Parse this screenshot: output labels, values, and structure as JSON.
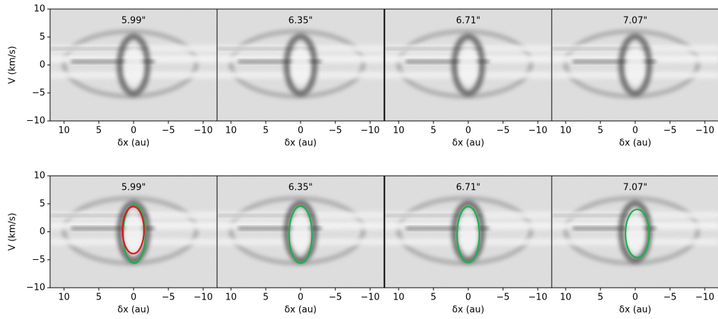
{
  "chart_data": [
    {
      "type": "image",
      "title": "5.99\"",
      "xlabel": "δx (au)",
      "ylabel": "V (km/s)",
      "xlim": [
        12,
        -12
      ],
      "ylim": [
        -10,
        10
      ],
      "xticks": [
        10,
        5,
        0,
        {
          "value": -5,
          "label": "−5"
        },
        {
          "value": -10,
          "label": "−10"
        }
      ],
      "yticks": [
        {
          "value": -10,
          "label": "−10"
        },
        {
          "value": -5,
          "label": "−5"
        },
        0,
        5,
        10
      ]
    },
    {
      "type": "image",
      "title": "6.35\"",
      "xlabel": "δx (au)",
      "xlim": [
        12,
        -12
      ],
      "ylim": [
        -10,
        10
      ],
      "xticks": [
        10,
        5,
        0,
        {
          "value": -5,
          "label": "−5"
        },
        {
          "value": -10,
          "label": "−10"
        }
      ]
    },
    {
      "type": "image",
      "title": "6.71\"",
      "xlabel": "δx (au)",
      "xlim": [
        12,
        -12
      ],
      "ylim": [
        -10,
        10
      ],
      "xticks": [
        10,
        5,
        0,
        {
          "value": -5,
          "label": "−5"
        },
        {
          "value": -10,
          "label": "−10"
        }
      ]
    },
    {
      "type": "image",
      "title": "7.07\"",
      "xlabel": "δx (au)",
      "xlim": [
        12,
        -12
      ],
      "ylim": [
        -10,
        10
      ],
      "xticks": [
        10,
        5,
        0,
        {
          "value": -5,
          "label": "−5"
        },
        {
          "value": -10,
          "label": "−10"
        }
      ]
    },
    {
      "type": "image",
      "title": "5.99\"",
      "xlabel": "δx (au)",
      "ylabel": "V (km/s)",
      "xlim": [
        12,
        -12
      ],
      "ylim": [
        -10,
        10
      ],
      "xticks": [
        10,
        5,
        0,
        {
          "value": -5,
          "label": "−5"
        },
        {
          "value": -10,
          "label": "−10"
        }
      ],
      "yticks": [
        {
          "value": -10,
          "label": "−10"
        },
        {
          "value": -5,
          "label": "−5"
        },
        0,
        5,
        10
      ],
      "ellipses": [
        {
          "color": "#17b24a",
          "x0": -0.1,
          "y0": -0.4,
          "rx": 1.6,
          "ry": 5.2
        },
        {
          "color": "#e5141b",
          "x0": 0.05,
          "y0": 0.3,
          "rx": 1.55,
          "ry": 4.2
        }
      ]
    },
    {
      "type": "image",
      "title": "6.35\"",
      "xlabel": "δx (au)",
      "xlim": [
        12,
        -12
      ],
      "ylim": [
        -10,
        10
      ],
      "xticks": [
        10,
        5,
        0,
        {
          "value": -5,
          "label": "−5"
        },
        {
          "value": -10,
          "label": "−10"
        }
      ],
      "ellipses": [
        {
          "color": "#17b24a",
          "x0": 0.0,
          "y0": -0.5,
          "rx": 1.65,
          "ry": 5.1
        }
      ]
    },
    {
      "type": "image",
      "title": "6.71\"",
      "xlabel": "δx (au)",
      "xlim": [
        12,
        -12
      ],
      "ylim": [
        -10,
        10
      ],
      "xticks": [
        10,
        5,
        0,
        {
          "value": -5,
          "label": "−5"
        },
        {
          "value": -10,
          "label": "−10"
        }
      ],
      "ellipses": [
        {
          "color": "#17b24a",
          "x0": 0.0,
          "y0": -0.5,
          "rx": 1.6,
          "ry": 5.0
        }
      ]
    },
    {
      "type": "image",
      "title": "7.07\"",
      "xlabel": "δx (au)",
      "xlim": [
        12,
        -12
      ],
      "ylim": [
        -10,
        10
      ],
      "xticks": [
        10,
        5,
        0,
        {
          "value": -5,
          "label": "−5"
        },
        {
          "value": -10,
          "label": "−10"
        }
      ],
      "ellipses": [
        {
          "color": "#17b24a",
          "x0": -0.3,
          "y0": -0.3,
          "rx": 1.7,
          "ry": 4.3
        }
      ]
    }
  ]
}
